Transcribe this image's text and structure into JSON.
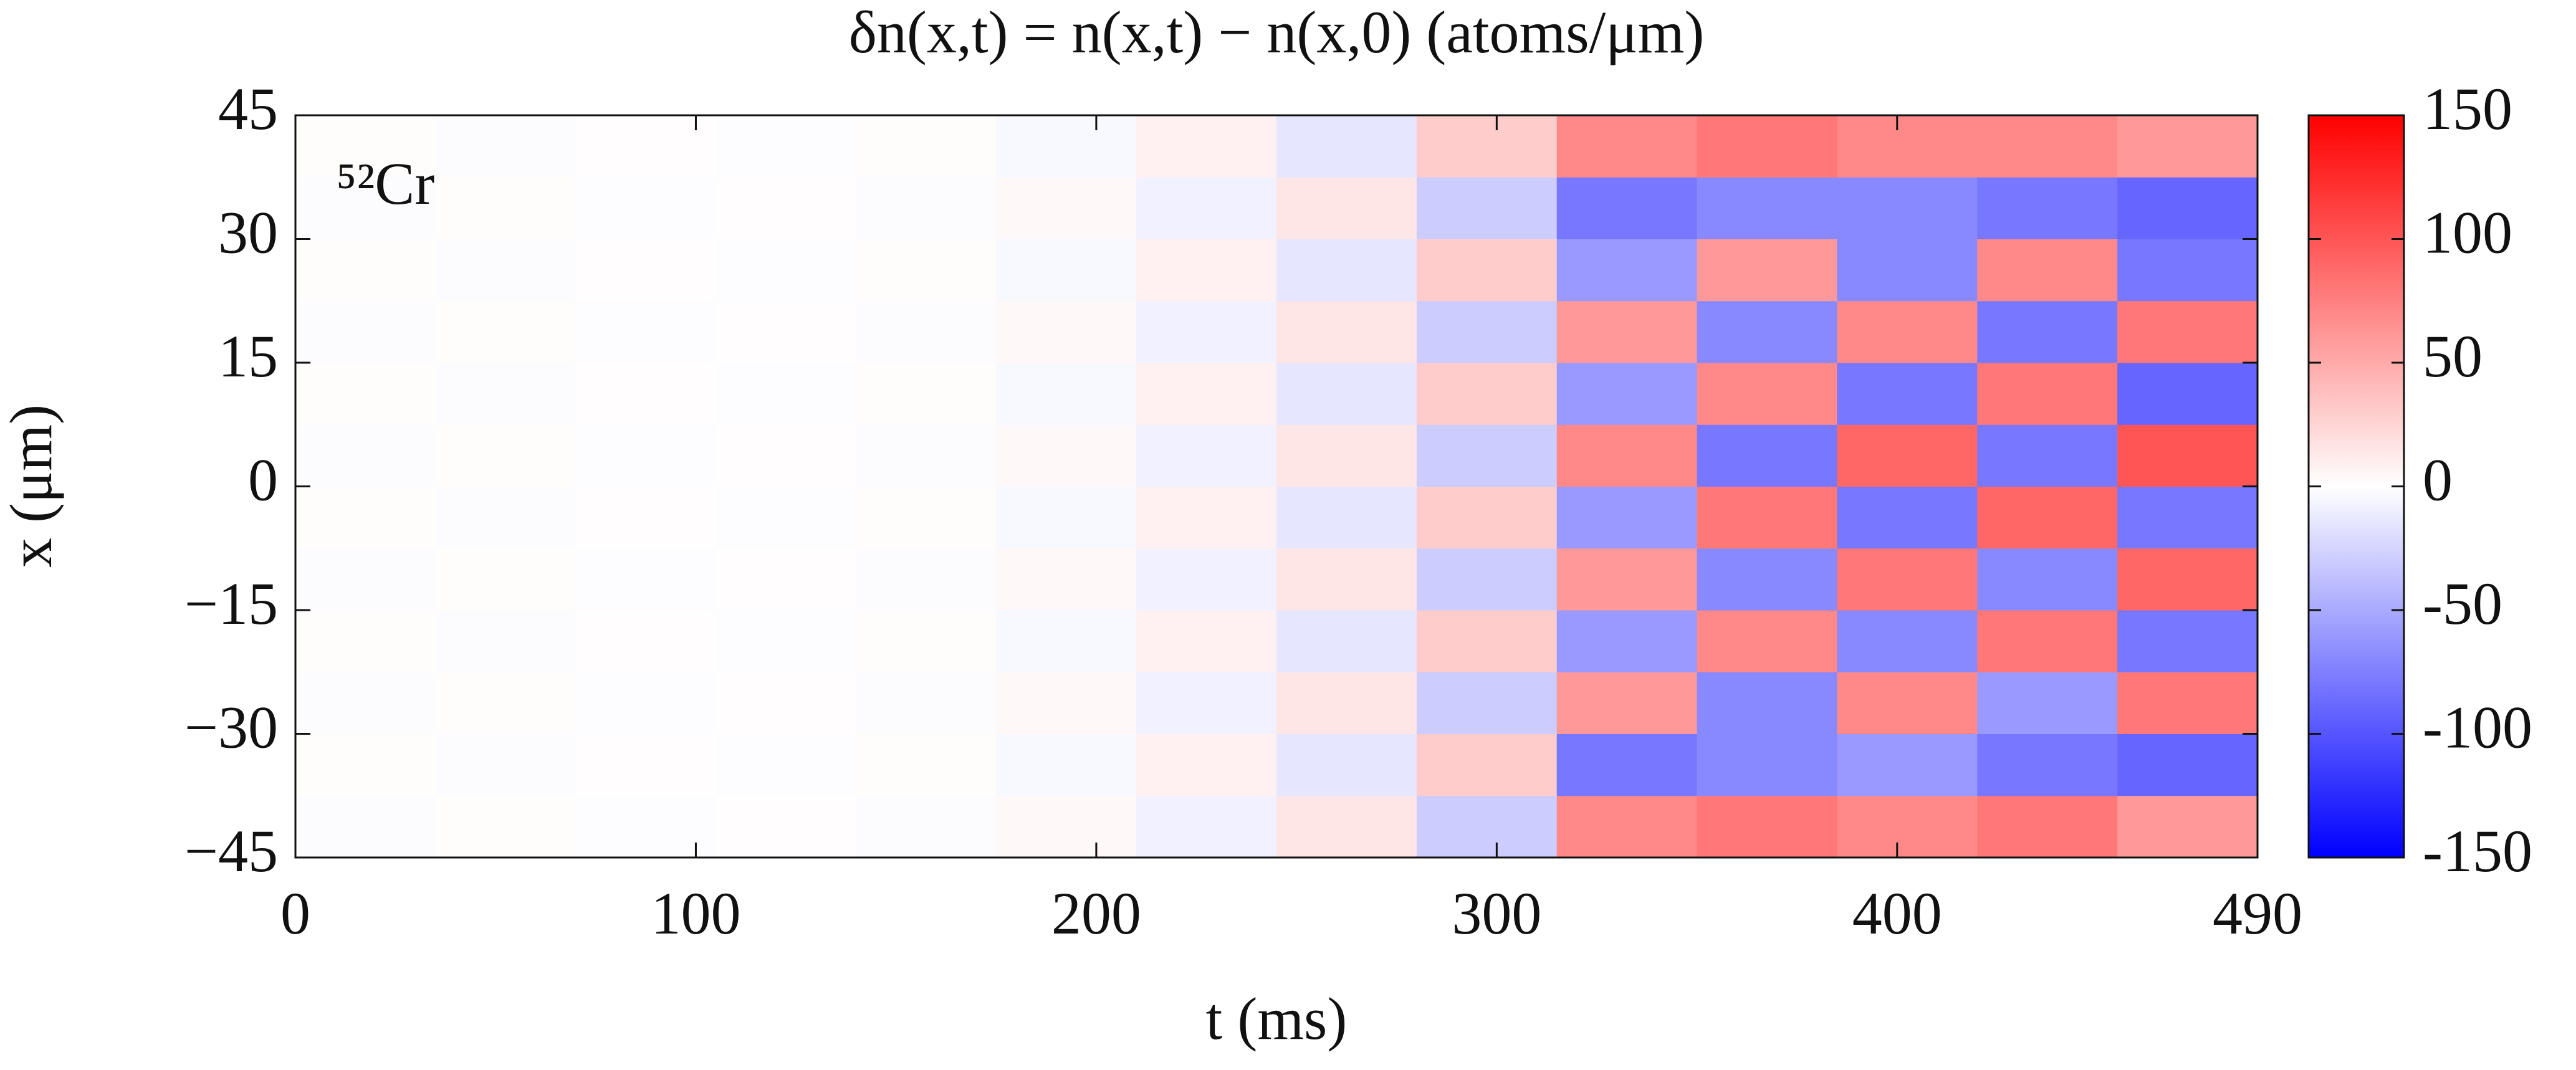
{
  "chart_data": {
    "type": "heatmap",
    "title": "δn(x,t) = n(x,t) − n(x,0)   (atoms/μm)",
    "xlabel": "t (ms)",
    "ylabel": "x (μm)",
    "annotation": "⁵²Cr",
    "x_bins": [
      0,
      35,
      70,
      105,
      140,
      175,
      210,
      245,
      280,
      315,
      350,
      385,
      420,
      455,
      490
    ],
    "y_bins": [
      -45,
      -37.5,
      -30,
      -22.5,
      -15,
      -7.5,
      0,
      7.5,
      15,
      22.5,
      30,
      37.5,
      45
    ],
    "z": [
      [
        -2,
        2,
        -1,
        1,
        -2,
        4,
        -8,
        15,
        -30,
        70,
        80,
        70,
        80,
        60
      ],
      [
        2,
        -2,
        1,
        -1,
        2,
        -4,
        8,
        -15,
        30,
        -80,
        -70,
        -60,
        -80,
        -90
      ],
      [
        -2,
        2,
        -1,
        1,
        -2,
        4,
        -8,
        15,
        -30,
        60,
        -70,
        70,
        -60,
        80
      ],
      [
        2,
        -2,
        1,
        -1,
        2,
        -4,
        8,
        -15,
        30,
        -60,
        70,
        -70,
        80,
        -80
      ],
      [
        -2,
        2,
        -1,
        1,
        -2,
        4,
        -8,
        15,
        -30,
        60,
        -70,
        80,
        -70,
        90
      ],
      [
        2,
        -2,
        1,
        -1,
        2,
        -4,
        8,
        -15,
        30,
        -60,
        80,
        -80,
        90,
        -80
      ],
      [
        -2,
        2,
        -1,
        1,
        -2,
        4,
        -8,
        15,
        -30,
        70,
        -80,
        90,
        -80,
        100
      ],
      [
        2,
        -2,
        1,
        -1,
        2,
        -4,
        8,
        -15,
        30,
        -60,
        70,
        -80,
        80,
        -90
      ],
      [
        -2,
        2,
        -1,
        1,
        -2,
        4,
        -8,
        15,
        -30,
        60,
        -70,
        70,
        -80,
        80
      ],
      [
        2,
        -2,
        1,
        -1,
        2,
        -4,
        8,
        -15,
        30,
        -60,
        60,
        -70,
        70,
        -80
      ],
      [
        -2,
        2,
        -1,
        1,
        -2,
        4,
        -8,
        15,
        -30,
        -80,
        -70,
        -70,
        -80,
        -90
      ],
      [
        2,
        -2,
        1,
        -1,
        2,
        -4,
        8,
        -15,
        30,
        70,
        80,
        70,
        70,
        60
      ]
    ],
    "xlim": [
      0,
      490
    ],
    "xticks": [
      0,
      100,
      200,
      300,
      400,
      490
    ],
    "ylim": [
      -45,
      45
    ],
    "yticks": [
      {
        "value": -45,
        "label": "−45"
      },
      {
        "value": -30,
        "label": "−30"
      },
      {
        "value": -15,
        "label": "−15"
      },
      0,
      15,
      30,
      45
    ],
    "zlim": [
      -150,
      150
    ],
    "zticks": [
      -150,
      -100,
      -50,
      0,
      50,
      100,
      150
    ],
    "colormap": [
      "#0000ff",
      "#ffffff",
      "#ff0000"
    ]
  }
}
